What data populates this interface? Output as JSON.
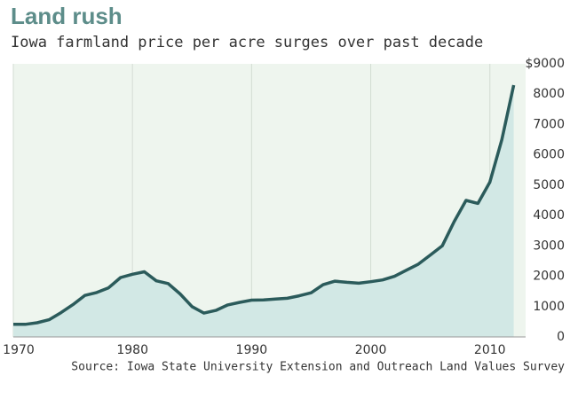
{
  "chart_data": {
    "type": "line",
    "title": "Land rush",
    "subtitle": "Iowa farmland price per acre surges over past decade",
    "source": "Source: Iowa State University Extension and Outreach Land Values Survey",
    "x": [
      1970,
      1971,
      1972,
      1973,
      1974,
      1975,
      1976,
      1977,
      1978,
      1979,
      1980,
      1981,
      1982,
      1983,
      1984,
      1985,
      1986,
      1987,
      1988,
      1989,
      1990,
      1991,
      1992,
      1993,
      1994,
      1995,
      1996,
      1997,
      1998,
      1999,
      2000,
      2001,
      2002,
      2003,
      2004,
      2005,
      2006,
      2007,
      2008,
      2009,
      2010,
      2011,
      2012
    ],
    "series": [
      {
        "name": "Price per acre",
        "color": "#2b5b5b",
        "values": [
          419,
          414,
          468,
          566,
          800,
          1065,
          1368,
          1464,
          1620,
          1958,
          2066,
          2147,
          1850,
          1760,
          1418,
          1000,
          787,
          875,
          1054,
          1139,
          1214,
          1219,
          1250,
          1275,
          1356,
          1455,
          1720,
          1837,
          1800,
          1770,
          1820,
          1880,
          2000,
          2200,
          2400,
          2700,
          3000,
          3800,
          4500,
          4400,
          5100,
          6500,
          8300
        ]
      }
    ],
    "xlim": [
      1970,
      2013
    ],
    "xticks": [
      1970,
      1980,
      1990,
      2000,
      2010
    ],
    "ylim": [
      0,
      9000
    ],
    "yticks": [
      0,
      1000,
      2000,
      3000,
      4000,
      5000,
      6000,
      7000,
      8000,
      {
        "value": 9000,
        "label": "$9000"
      }
    ],
    "grid": true,
    "area_color": "#d2e8e5",
    "background": "#eef5ee"
  }
}
